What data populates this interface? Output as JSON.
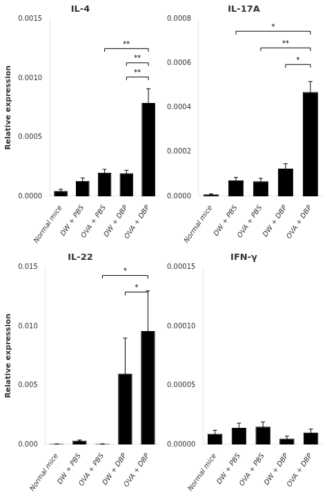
{
  "chart_data": [
    {
      "type": "bar",
      "title": "IL-4",
      "categories": [
        "Normal mice",
        "DW + PBS",
        "OVA + PBS",
        "DW + DBP",
        "OVA + DBP"
      ],
      "values": [
        4.5e-05,
        0.00013,
        0.0002,
        0.000195,
        0.00079
      ],
      "errors": [
        1.5e-05,
        2.5e-05,
        2.8e-05,
        2.5e-05,
        0.00012
      ],
      "color": "#000000",
      "y_label": "Relative expression",
      "ylim": [
        0,
        0.0015
      ],
      "yticks": [
        {
          "value": 0,
          "label": "0.0000"
        },
        0.0005,
        {
          "value": 0.001,
          "label": "0.0010"
        },
        0.0015
      ],
      "grid": false,
      "annotations": [
        {
          "x1": "OVA + PBS",
          "x2": "OVA + DBP",
          "y": 0.00125,
          "text": "**"
        },
        {
          "x1": "DW + DBP",
          "x2": "OVA + DBP",
          "y": 0.00113,
          "text": "**"
        },
        {
          "x1": "DW + DBP",
          "x2": "OVA + DBP",
          "y": 0.00101,
          "text": "**"
        }
      ]
    },
    {
      "type": "bar",
      "title": "IL-17A",
      "categories": [
        "Normal mice",
        "DW + PBS",
        "OVA + PBS",
        "DW + DBP",
        "OVA + DBP"
      ],
      "values": [
        8e-06,
        7.2e-05,
        6.8e-05,
        0.000125,
        0.00047
      ],
      "errors": [
        3e-06,
        1.3e-05,
        1.3e-05,
        2.2e-05,
        4.8e-05
      ],
      "color": "#000000",
      "ylim": [
        0,
        0.0008
      ],
      "yticks": [
        {
          "value": 0,
          "label": "0.0000"
        },
        0.0002,
        0.0004,
        0.0006,
        0.0008
      ],
      "grid": false,
      "annotations": [
        {
          "x1": "DW + PBS",
          "x2": "OVA + DBP",
          "y": 0.000745,
          "text": "*"
        },
        {
          "x1": "OVA + PBS",
          "x2": "OVA + DBP",
          "y": 0.00067,
          "text": "**"
        },
        {
          "x1": "DW + DBP",
          "x2": "OVA + DBP",
          "y": 0.000595,
          "text": "*"
        }
      ]
    },
    {
      "type": "bar",
      "title": "IL-22",
      "categories": [
        "Normal mice",
        "DW + PBS",
        "OVA + PBS",
        "DW + DBP",
        "OVA + DBP"
      ],
      "values": [
        3.5e-05,
        0.00032,
        3.5e-05,
        0.006,
        0.0096
      ],
      "errors": [
        1e-05,
        5.5e-05,
        1.5e-05,
        0.003,
        0.0034
      ],
      "color": "#000000",
      "y_label": "Relative expression",
      "ylim": [
        0,
        0.015
      ],
      "yticks": [
        {
          "value": 0,
          "label": "0.000"
        },
        0.005,
        {
          "value": 0.01,
          "label": "0.010"
        },
        0.015
      ],
      "grid": false,
      "annotations": [
        {
          "x1": "OVA + PBS",
          "x2": "OVA + DBP",
          "y": 0.0143,
          "text": "*"
        },
        {
          "x1": "DW + DBP",
          "x2": "OVA + DBP",
          "y": 0.0129,
          "text": "*"
        }
      ]
    },
    {
      "type": "bar",
      "title": "IFN-γ",
      "categories": [
        "Normal mice",
        "DW + PBS",
        "OVA + PBS",
        "DW + DBP",
        "OVA + DBP"
      ],
      "values": [
        9e-06,
        1.4e-05,
        1.5e-05,
        5e-06,
        1e-05
      ],
      "errors": [
        3e-06,
        4e-06,
        4e-06,
        2e-06,
        3e-06
      ],
      "color": "#000000",
      "ylim": [
        0,
        0.00015
      ],
      "yticks": [
        {
          "value": 0,
          "label": "0.00000"
        },
        5e-05,
        {
          "value": 0.0001,
          "label": "0.00010"
        },
        0.00015
      ],
      "grid": false,
      "annotations": []
    }
  ]
}
